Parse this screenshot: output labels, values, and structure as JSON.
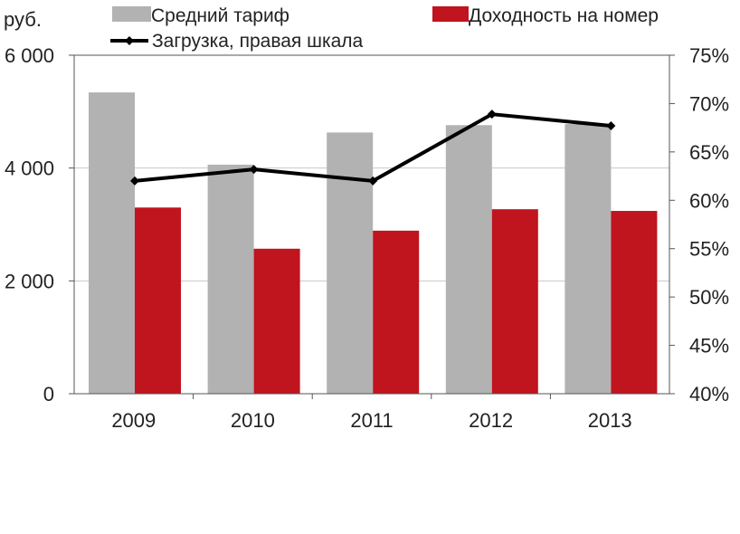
{
  "chart_data": {
    "type": "bar",
    "categories": [
      "2009",
      "2010",
      "2011",
      "2012",
      "2013"
    ],
    "unit_label": "руб.",
    "series": [
      {
        "name": "Средний тариф",
        "type": "bar",
        "axis": "left",
        "color": "#b2b2b2",
        "values": [
          5340,
          4060,
          4630,
          4760,
          4780
        ]
      },
      {
        "name": "Доходность на номер",
        "type": "bar",
        "axis": "left",
        "color": "#c0141e",
        "values": [
          3300,
          2570,
          2890,
          3270,
          3240
        ]
      },
      {
        "name": "Загрузка, правая шкала",
        "type": "line",
        "axis": "right",
        "color": "#000000",
        "values": [
          62.0,
          63.2,
          62.0,
          68.9,
          67.7
        ]
      }
    ],
    "y_left": {
      "min": 0,
      "max": 6000,
      "ticks": [
        0,
        2000,
        4000,
        6000
      ],
      "tick_labels": [
        "0",
        "2 000",
        "4 000",
        "6 000"
      ]
    },
    "y_right": {
      "min": 40,
      "max": 75,
      "ticks": [
        40,
        45,
        50,
        55,
        60,
        65,
        70,
        75
      ],
      "tick_labels": [
        "40%",
        "45%",
        "50%",
        "55%",
        "60%",
        "65%",
        "70%",
        "75%"
      ]
    },
    "grid": true,
    "legend_position": "top"
  }
}
